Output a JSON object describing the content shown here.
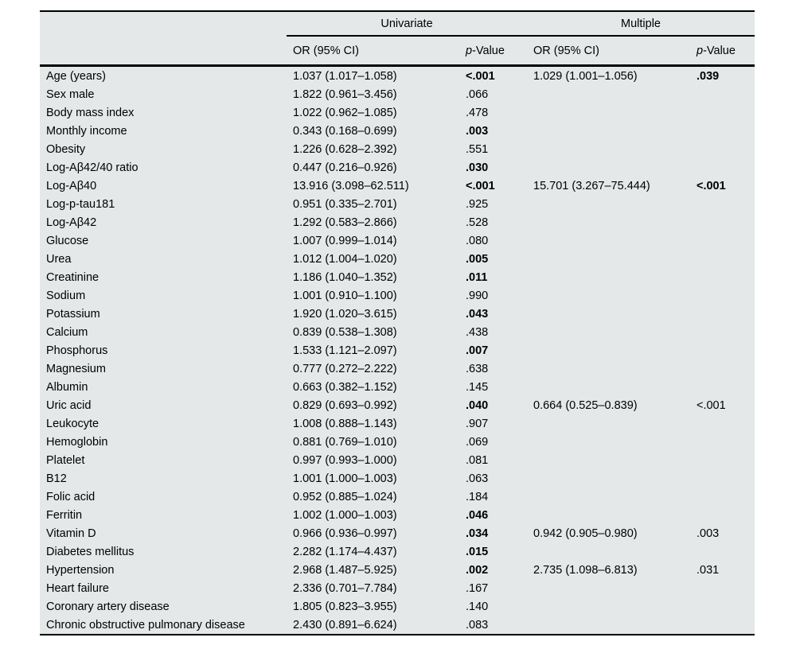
{
  "table": {
    "group_headers": [
      "Univariate",
      "Multiple"
    ],
    "or_header": "OR (95% CI)",
    "p_header_italic": "p",
    "p_header_rest": "-Value",
    "background_color": "#e4e8e8",
    "rule_color": "#000000"
  },
  "rows": [
    {
      "name": "Age (years)",
      "uni_or": "1.037 (1.017–1.058)",
      "uni_p": "<.001",
      "uni_p_bold": true,
      "multi_or": "1.029 (1.001–1.056)",
      "multi_p": ".039",
      "multi_p_bold": true
    },
    {
      "name": "Sex male",
      "uni_or": "1.822 (0.961–3.456)",
      "uni_p": ".066",
      "uni_p_bold": false,
      "multi_or": "",
      "multi_p": "",
      "multi_p_bold": false
    },
    {
      "name": "Body mass index",
      "uni_or": "1.022 (0.962–1.085)",
      "uni_p": ".478",
      "uni_p_bold": false,
      "multi_or": "",
      "multi_p": "",
      "multi_p_bold": false
    },
    {
      "name": "Monthly income",
      "uni_or": "0.343 (0.168–0.699)",
      "uni_p": ".003",
      "uni_p_bold": true,
      "multi_or": "",
      "multi_p": "",
      "multi_p_bold": false
    },
    {
      "name": "Obesity",
      "uni_or": "1.226 (0.628–2.392)",
      "uni_p": ".551",
      "uni_p_bold": false,
      "multi_or": "",
      "multi_p": "",
      "multi_p_bold": false
    },
    {
      "name": "Log-Aβ42/40 ratio",
      "uni_or": "0.447 (0.216–0.926)",
      "uni_p": ".030",
      "uni_p_bold": true,
      "multi_or": "",
      "multi_p": "",
      "multi_p_bold": false
    },
    {
      "name": "Log-Aβ40",
      "uni_or": "13.916 (3.098–62.511)",
      "uni_p": "<.001",
      "uni_p_bold": true,
      "multi_or": "15.701 (3.267–75.444)",
      "multi_p": "<.001",
      "multi_p_bold": true
    },
    {
      "name": "Log-p-tau181",
      "uni_or": "0.951 (0.335–2.701)",
      "uni_p": ".925",
      "uni_p_bold": false,
      "multi_or": "",
      "multi_p": "",
      "multi_p_bold": false
    },
    {
      "name": "Log-Aβ42",
      "uni_or": "1.292 (0.583–2.866)",
      "uni_p": ".528",
      "uni_p_bold": false,
      "multi_or": "",
      "multi_p": "",
      "multi_p_bold": false
    },
    {
      "name": "Glucose",
      "uni_or": "1.007 (0.999–1.014)",
      "uni_p": ".080",
      "uni_p_bold": false,
      "multi_or": "",
      "multi_p": "",
      "multi_p_bold": false
    },
    {
      "name": "Urea",
      "uni_or": "1.012 (1.004–1.020)",
      "uni_p": ".005",
      "uni_p_bold": true,
      "multi_or": "",
      "multi_p": "",
      "multi_p_bold": false
    },
    {
      "name": "Creatinine",
      "uni_or": "1.186 (1.040–1.352)",
      "uni_p": ".011",
      "uni_p_bold": true,
      "multi_or": "",
      "multi_p": "",
      "multi_p_bold": false
    },
    {
      "name": "Sodium",
      "uni_or": "1.001 (0.910–1.100)",
      "uni_p": ".990",
      "uni_p_bold": false,
      "multi_or": "",
      "multi_p": "",
      "multi_p_bold": false
    },
    {
      "name": "Potassium",
      "uni_or": "1.920 (1.020–3.615)",
      "uni_p": ".043",
      "uni_p_bold": true,
      "multi_or": "",
      "multi_p": "",
      "multi_p_bold": false
    },
    {
      "name": "Calcium",
      "uni_or": "0.839 (0.538–1.308)",
      "uni_p": ".438",
      "uni_p_bold": false,
      "multi_or": "",
      "multi_p": "",
      "multi_p_bold": false
    },
    {
      "name": "Phosphorus",
      "uni_or": "1.533 (1.121–2.097)",
      "uni_p": ".007",
      "uni_p_bold": true,
      "multi_or": "",
      "multi_p": "",
      "multi_p_bold": false
    },
    {
      "name": "Magnesium",
      "uni_or": "0.777 (0.272–2.222)",
      "uni_p": ".638",
      "uni_p_bold": false,
      "multi_or": "",
      "multi_p": "",
      "multi_p_bold": false
    },
    {
      "name": "Albumin",
      "uni_or": "0.663 (0.382–1.152)",
      "uni_p": ".145",
      "uni_p_bold": false,
      "multi_or": "",
      "multi_p": "",
      "multi_p_bold": false
    },
    {
      "name": "Uric acid",
      "uni_or": "0.829 (0.693–0.992)",
      "uni_p": ".040",
      "uni_p_bold": true,
      "multi_or": "0.664 (0.525–0.839)",
      "multi_p": "<.001",
      "multi_p_bold": false
    },
    {
      "name": "Leukocyte",
      "uni_or": "1.008 (0.888–1.143)",
      "uni_p": ".907",
      "uni_p_bold": false,
      "multi_or": "",
      "multi_p": "",
      "multi_p_bold": false
    },
    {
      "name": "Hemoglobin",
      "uni_or": "0.881 (0.769–1.010)",
      "uni_p": ".069",
      "uni_p_bold": false,
      "multi_or": "",
      "multi_p": "",
      "multi_p_bold": false
    },
    {
      "name": "Platelet",
      "uni_or": "0.997 (0.993–1.000)",
      "uni_p": ".081",
      "uni_p_bold": false,
      "multi_or": "",
      "multi_p": "",
      "multi_p_bold": false
    },
    {
      "name": "B12",
      "uni_or": "1.001 (1.000–1.003)",
      "uni_p": ".063",
      "uni_p_bold": false,
      "multi_or": "",
      "multi_p": "",
      "multi_p_bold": false
    },
    {
      "name": "Folic acid",
      "uni_or": "0.952 (0.885–1.024)",
      "uni_p": ".184",
      "uni_p_bold": false,
      "multi_or": "",
      "multi_p": "",
      "multi_p_bold": false
    },
    {
      "name": "Ferritin",
      "uni_or": "1.002 (1.000–1.003)",
      "uni_p": ".046",
      "uni_p_bold": true,
      "multi_or": "",
      "multi_p": "",
      "multi_p_bold": false
    },
    {
      "name": "Vitamin D",
      "uni_or": "0.966 (0.936–0.997)",
      "uni_p": ".034",
      "uni_p_bold": true,
      "multi_or": "0.942 (0.905–0.980)",
      "multi_p": ".003",
      "multi_p_bold": false
    },
    {
      "name": "Diabetes mellitus",
      "uni_or": "2.282 (1.174–4.437)",
      "uni_p": ".015",
      "uni_p_bold": true,
      "multi_or": "",
      "multi_p": "",
      "multi_p_bold": false
    },
    {
      "name": "Hypertension",
      "uni_or": "2.968 (1.487–5.925)",
      "uni_p": ".002",
      "uni_p_bold": true,
      "multi_or": "2.735 (1.098–6.813)",
      "multi_p": ".031",
      "multi_p_bold": false
    },
    {
      "name": "Heart failure",
      "uni_or": "2.336 (0.701–7.784)",
      "uni_p": ".167",
      "uni_p_bold": false,
      "multi_or": "",
      "multi_p": "",
      "multi_p_bold": false
    },
    {
      "name": "Coronary artery disease",
      "uni_or": "1.805 (0.823–3.955)",
      "uni_p": ".140",
      "uni_p_bold": false,
      "multi_or": "",
      "multi_p": "",
      "multi_p_bold": false
    },
    {
      "name": "Chronic obstructive pulmonary disease",
      "uni_or": "2.430 (0.891–6.624)",
      "uni_p": ".083",
      "uni_p_bold": false,
      "multi_or": "",
      "multi_p": "",
      "multi_p_bold": false
    }
  ]
}
